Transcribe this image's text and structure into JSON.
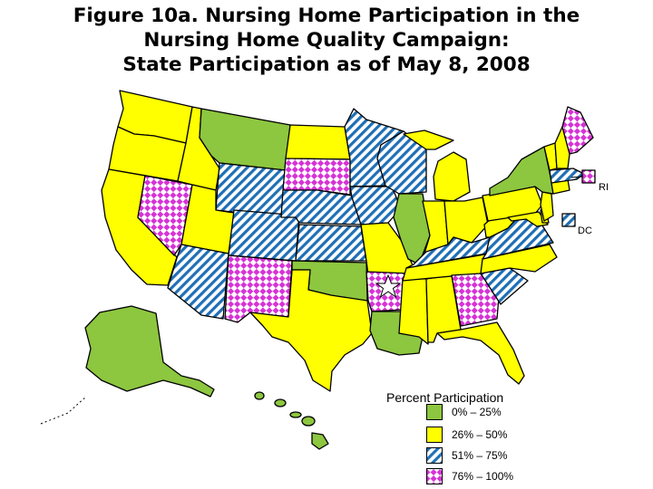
{
  "title": {
    "line1": "Figure 10a. Nursing Home Participation in the",
    "line2": "Nursing Home Quality Campaign:",
    "line3": "State Participation as of May 8, 2008"
  },
  "callouts": {
    "ri": "RI",
    "dc": "DC"
  },
  "colors": {
    "low": "#8dc63f",
    "mid_low": "#ffff00",
    "mid_high_stripe": "#1f6fb5",
    "high_dot": "#d633d6",
    "outline": "#000000"
  },
  "legend": {
    "title": "Percent Participation",
    "items": [
      {
        "label": "0% –  25%",
        "fill": "solid-green"
      },
      {
        "label": "26% –  50%",
        "fill": "solid-yellow"
      },
      {
        "label": "51% –  75%",
        "fill": "blue-stripes"
      },
      {
        "label": "76% – 100%",
        "fill": "magenta-checks"
      }
    ]
  },
  "marker": "star"
}
